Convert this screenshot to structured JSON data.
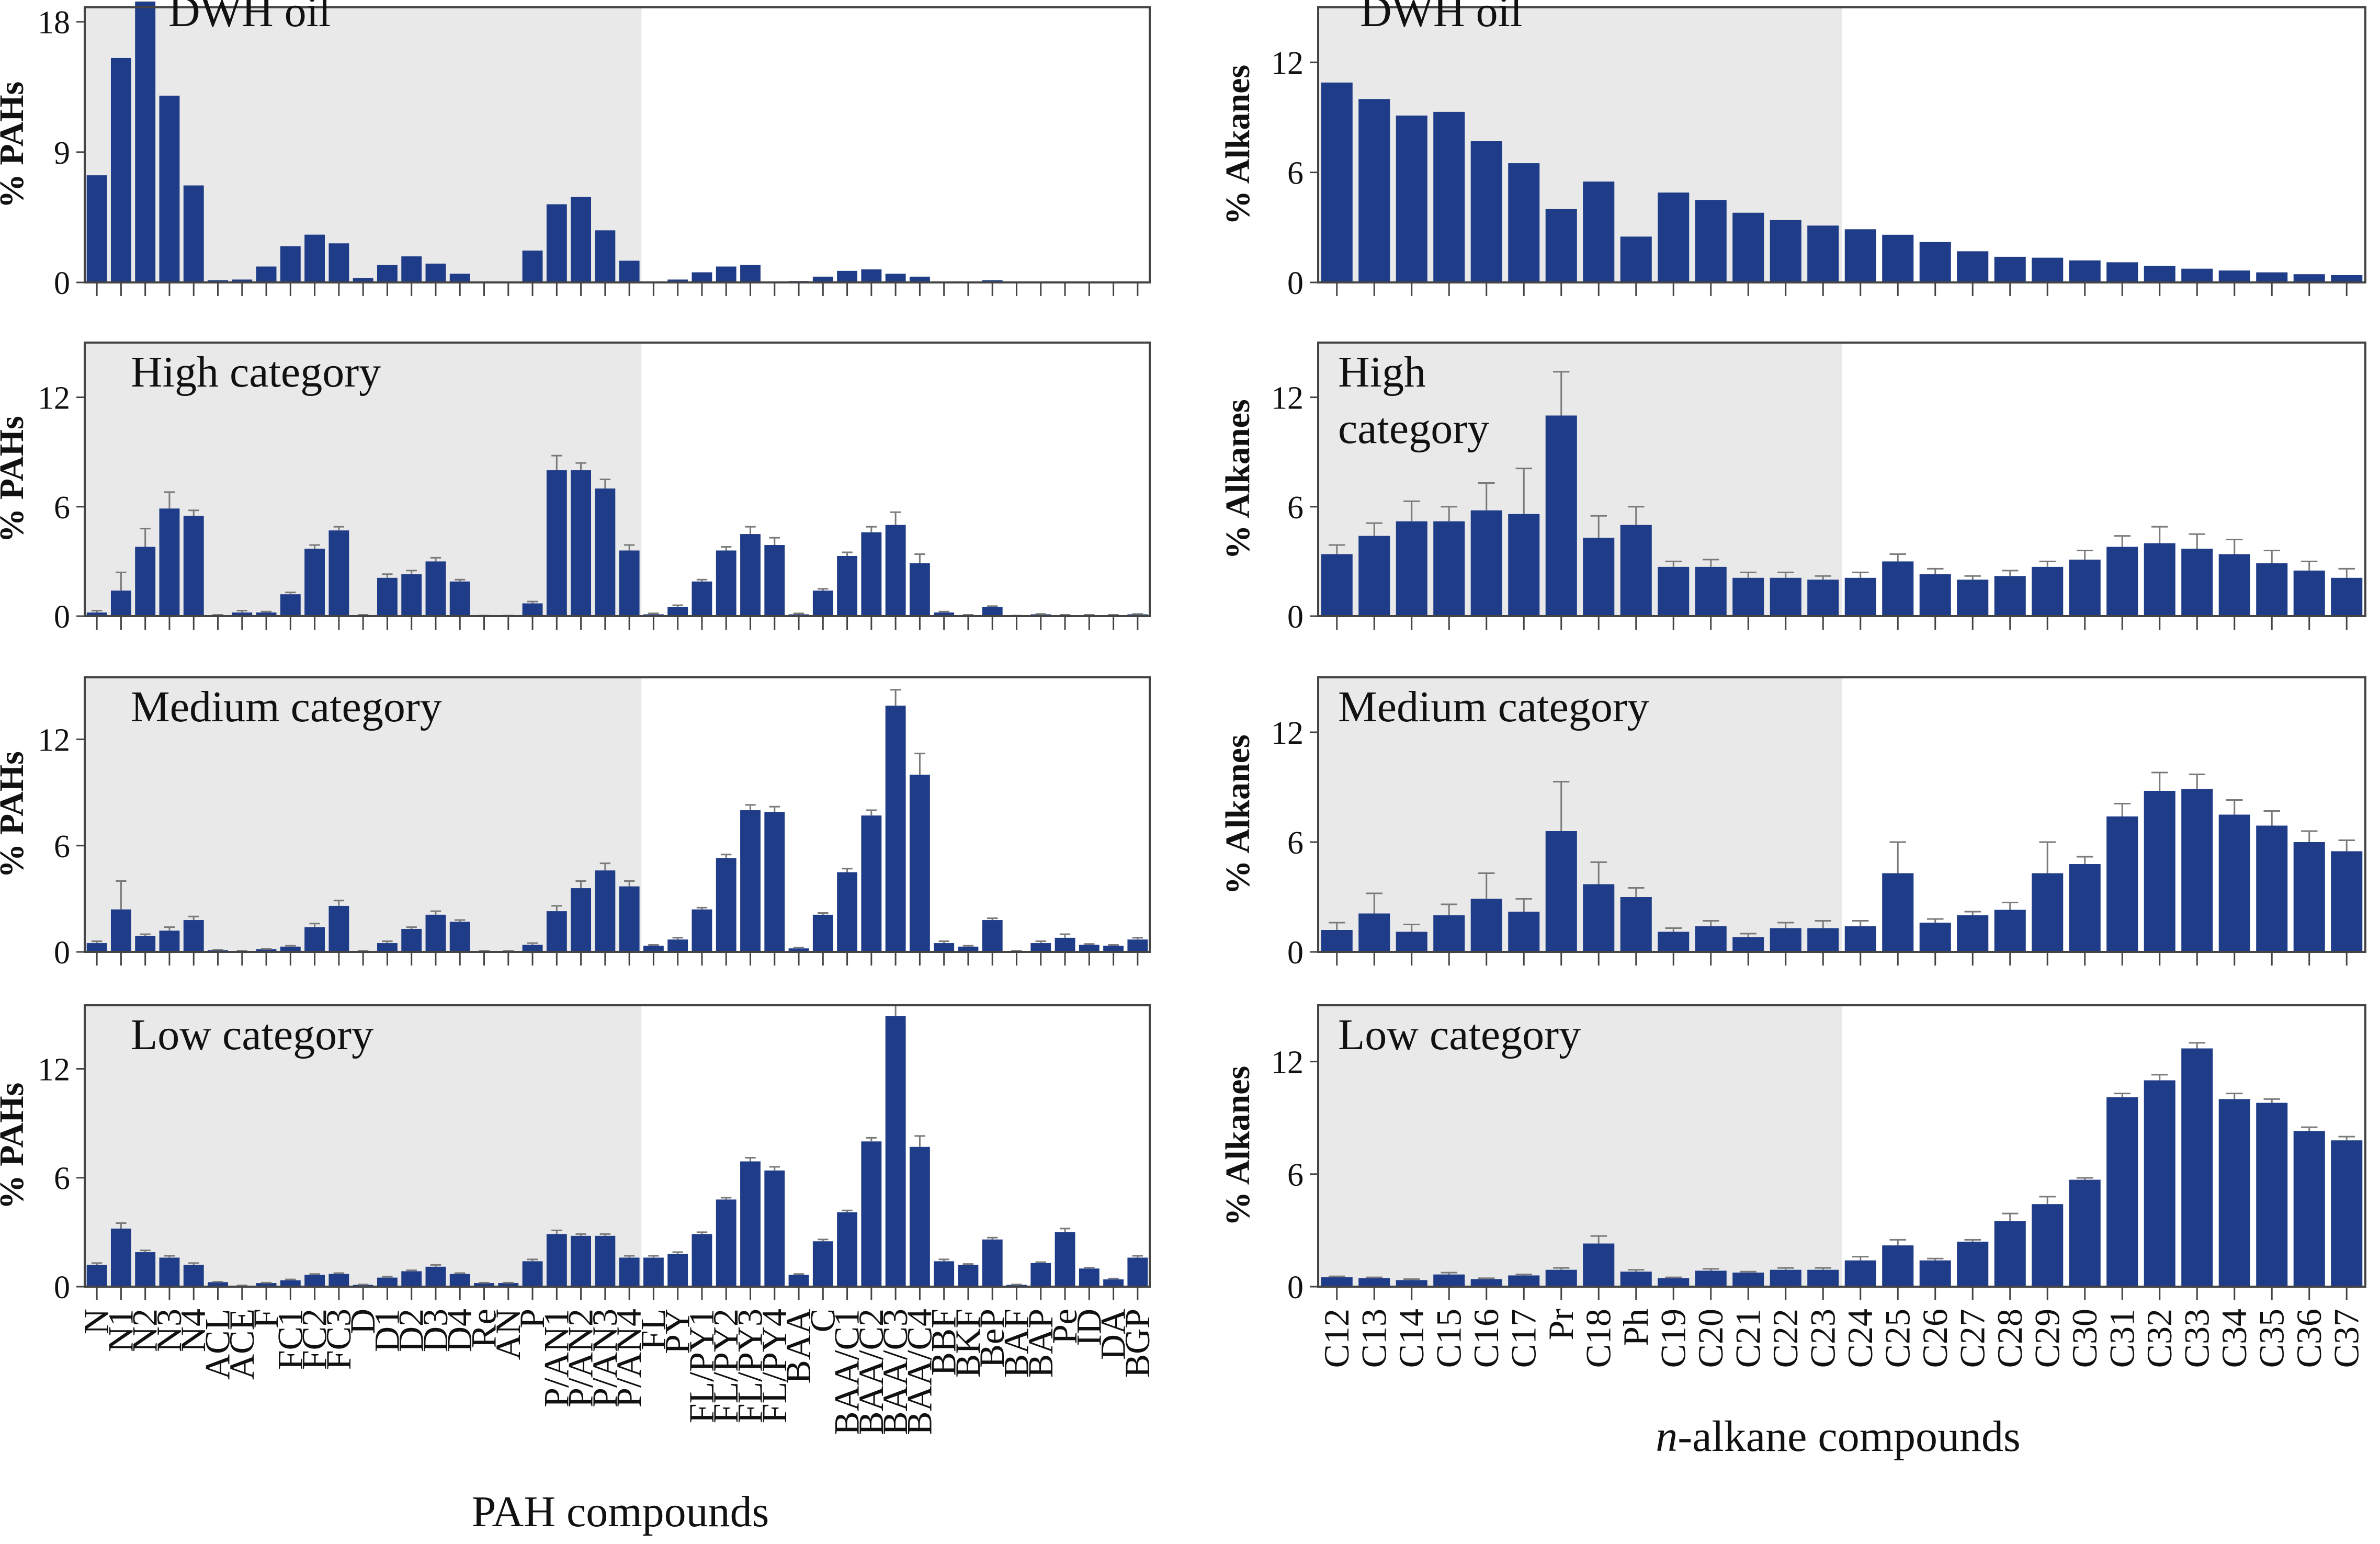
{
  "figure": {
    "pah_xlabel": "PAH compounds",
    "alkane_xlabel_italic": "n",
    "alkane_xlabel_rest": "-alkane compounds"
  },
  "colors": {
    "bar": "#1f3c88",
    "shade": "#e9e9e9",
    "axis": "#444444",
    "error": "#7a7a7a"
  },
  "chart_data": [
    {
      "type": "bar",
      "panel": "pah",
      "title": "DWH oil",
      "ylabel": "% PAHs",
      "ylim": [
        0,
        19
      ],
      "yticks": [
        0,
        9,
        18
      ],
      "shade_through": "P/AN4",
      "categories": [
        "N",
        "N1",
        "N2",
        "N3",
        "N4",
        "ACL",
        "ACE",
        "F",
        "FC1",
        "FC2",
        "FC3",
        "D",
        "D1",
        "D2",
        "D3",
        "D4",
        "Re",
        "AN",
        "P",
        "P/AN1",
        "P/AN2",
        "P/AN3",
        "P/AN4",
        "FL",
        "PY",
        "FL/PY1",
        "FL/PY2",
        "FL/PY3",
        "FL/PY4",
        "BAA",
        "C",
        "BAA/C1",
        "BAA/C2",
        "BAA/C3",
        "BAA/C4",
        "BBF",
        "BKF",
        "BeP",
        "BAF",
        "BAP",
        "Pe",
        "ID",
        "DA",
        "BGP"
      ],
      "values": [
        7.4,
        15.5,
        19.4,
        12.9,
        6.7,
        0.15,
        0.2,
        1.1,
        2.5,
        3.3,
        2.7,
        0.3,
        1.2,
        1.8,
        1.3,
        0.6,
        0.05,
        0.05,
        2.2,
        5.4,
        5.9,
        3.6,
        1.5,
        0.05,
        0.2,
        0.7,
        1.1,
        1.2,
        0.05,
        0.1,
        0.4,
        0.8,
        0.9,
        0.6,
        0.4,
        0.02,
        0.05,
        0.15,
        0.02,
        0.02,
        0.02,
        0.02,
        0.02,
        0.02
      ],
      "errors": []
    },
    {
      "type": "bar",
      "panel": "pah",
      "title": "High category",
      "ylabel": "% PAHs",
      "ylim": [
        0,
        15
      ],
      "yticks": [
        0,
        6,
        12
      ],
      "shade_through": "P/AN4",
      "categories": [
        "N",
        "N1",
        "N2",
        "N3",
        "N4",
        "ACL",
        "ACE",
        "F",
        "FC1",
        "FC2",
        "FC3",
        "D",
        "D1",
        "D2",
        "D3",
        "D4",
        "Re",
        "AN",
        "P",
        "P/AN1",
        "P/AN2",
        "P/AN3",
        "P/AN4",
        "FL",
        "PY",
        "FL/PY1",
        "FL/PY2",
        "FL/PY3",
        "FL/PY4",
        "BAA",
        "C",
        "BAA/C1",
        "BAA/C2",
        "BAA/C3",
        "BAA/C4",
        "BBF",
        "BKF",
        "BeP",
        "BAF",
        "BAP",
        "Pe",
        "ID",
        "DA",
        "BGP"
      ],
      "values": [
        0.2,
        1.4,
        3.8,
        5.9,
        5.5,
        0.05,
        0.2,
        0.2,
        1.2,
        3.7,
        4.7,
        0.05,
        2.1,
        2.3,
        3.0,
        1.9,
        0.02,
        0.02,
        0.7,
        8.0,
        8.0,
        7.0,
        3.6,
        0.1,
        0.5,
        1.9,
        3.6,
        4.5,
        3.9,
        0.1,
        1.4,
        3.3,
        4.6,
        5.0,
        2.9,
        0.2,
        0.05,
        0.5,
        0.02,
        0.1,
        0.05,
        0.05,
        0.05,
        0.1
      ],
      "errors": [
        0.1,
        1.0,
        1.0,
        0.9,
        0.3,
        0.02,
        0.1,
        0.05,
        0.1,
        0.2,
        0.2,
        0.02,
        0.2,
        0.2,
        0.2,
        0.1,
        0.01,
        0.01,
        0.1,
        0.8,
        0.4,
        0.5,
        0.3,
        0.05,
        0.1,
        0.1,
        0.2,
        0.4,
        0.4,
        0.05,
        0.1,
        0.2,
        0.3,
        0.7,
        0.5,
        0.05,
        0.02,
        0.05,
        0.01,
        0.02,
        0.02,
        0.02,
        0.02,
        0.02
      ]
    },
    {
      "type": "bar",
      "panel": "pah",
      "title": "Medium category",
      "ylabel": "% PAHs",
      "ylim": [
        0,
        15.5
      ],
      "yticks": [
        0,
        6,
        12
      ],
      "shade_through": "P/AN4",
      "categories": [
        "N",
        "N1",
        "N2",
        "N3",
        "N4",
        "ACL",
        "ACE",
        "F",
        "FC1",
        "FC2",
        "FC3",
        "D",
        "D1",
        "D2",
        "D3",
        "D4",
        "Re",
        "AN",
        "P",
        "P/AN1",
        "P/AN2",
        "P/AN3",
        "P/AN4",
        "FL",
        "PY",
        "FL/PY1",
        "FL/PY2",
        "FL/PY3",
        "FL/PY4",
        "BAA",
        "C",
        "BAA/C1",
        "BAA/C2",
        "BAA/C3",
        "BAA/C4",
        "BBF",
        "BKF",
        "BeP",
        "BAF",
        "BAP",
        "Pe",
        "ID",
        "DA",
        "BGP"
      ],
      "values": [
        0.5,
        2.4,
        0.9,
        1.2,
        1.8,
        0.1,
        0.05,
        0.15,
        0.3,
        1.4,
        2.6,
        0.05,
        0.5,
        1.3,
        2.1,
        1.7,
        0.05,
        0.05,
        0.4,
        2.3,
        3.6,
        4.6,
        3.7,
        0.35,
        0.7,
        2.4,
        5.3,
        8.0,
        7.9,
        0.2,
        2.1,
        4.5,
        7.7,
        13.9,
        10.0,
        0.5,
        0.3,
        1.8,
        0.05,
        0.5,
        0.8,
        0.4,
        0.35,
        0.7
      ],
      "errors": [
        0.1,
        1.6,
        0.1,
        0.2,
        0.2,
        0.02,
        0.02,
        0.02,
        0.05,
        0.2,
        0.3,
        0.02,
        0.1,
        0.1,
        0.2,
        0.1,
        0.02,
        0.02,
        0.1,
        0.3,
        0.4,
        0.4,
        0.3,
        0.05,
        0.1,
        0.1,
        0.2,
        0.3,
        0.3,
        0.05,
        0.1,
        0.2,
        0.3,
        0.9,
        1.2,
        0.1,
        0.05,
        0.1,
        0.02,
        0.1,
        0.2,
        0.05,
        0.05,
        0.1
      ]
    },
    {
      "type": "bar",
      "panel": "pah",
      "title": "Low category",
      "ylabel": "% PAHs",
      "ylim": [
        0,
        15.5
      ],
      "yticks": [
        0,
        6,
        12
      ],
      "shade_through": "P/AN4",
      "categories": [
        "N",
        "N1",
        "N2",
        "N3",
        "N4",
        "ACL",
        "ACE",
        "F",
        "FC1",
        "FC2",
        "FC3",
        "D",
        "D1",
        "D2",
        "D3",
        "D4",
        "Re",
        "AN",
        "P",
        "P/AN1",
        "P/AN2",
        "P/AN3",
        "P/AN4",
        "FL",
        "PY",
        "FL/PY1",
        "FL/PY2",
        "FL/PY3",
        "FL/PY4",
        "BAA",
        "C",
        "BAA/C1",
        "BAA/C2",
        "BAA/C3",
        "BAA/C4",
        "BBF",
        "BKF",
        "BeP",
        "BAF",
        "BAP",
        "Pe",
        "ID",
        "DA",
        "BGP"
      ],
      "values": [
        1.2,
        3.2,
        1.9,
        1.6,
        1.2,
        0.25,
        0.05,
        0.2,
        0.35,
        0.65,
        0.7,
        0.1,
        0.5,
        0.85,
        1.1,
        0.7,
        0.2,
        0.2,
        1.4,
        2.9,
        2.8,
        2.8,
        1.6,
        1.6,
        1.8,
        2.9,
        4.8,
        6.9,
        6.4,
        0.65,
        2.5,
        4.1,
        8.0,
        14.9,
        7.7,
        1.4,
        1.2,
        2.6,
        0.1,
        1.3,
        3.0,
        1.0,
        0.4,
        1.6
      ],
      "errors": [
        0.1,
        0.3,
        0.1,
        0.1,
        0.1,
        0.02,
        0.02,
        0.02,
        0.05,
        0.05,
        0.05,
        0.02,
        0.05,
        0.05,
        0.1,
        0.05,
        0.02,
        0.02,
        0.1,
        0.2,
        0.1,
        0.1,
        0.1,
        0.1,
        0.1,
        0.1,
        0.1,
        0.2,
        0.2,
        0.05,
        0.1,
        0.1,
        0.2,
        0.6,
        0.6,
        0.1,
        0.05,
        0.1,
        0.02,
        0.05,
        0.2,
        0.05,
        0.05,
        0.1
      ]
    },
    {
      "type": "bar",
      "panel": "alkane",
      "title": "DWH oil",
      "title_lines": [
        "DWH oil"
      ],
      "ylabel": "% Alkanes",
      "ylim": [
        0,
        15
      ],
      "yticks": [
        0,
        6,
        12
      ],
      "shade_through": "C23",
      "categories": [
        "C12",
        "C13",
        "C14",
        "C15",
        "C16",
        "C17",
        "Pr",
        "C18",
        "Ph",
        "C19",
        "C20",
        "C21",
        "C22",
        "C23",
        "C24",
        "C25",
        "C26",
        "C27",
        "C28",
        "C29",
        "C30",
        "C31",
        "C32",
        "C33",
        "C34",
        "C35",
        "C36",
        "C37"
      ],
      "values": [
        10.9,
        10.0,
        9.1,
        9.3,
        7.7,
        6.5,
        4.0,
        5.5,
        2.5,
        4.9,
        4.5,
        3.8,
        3.4,
        3.1,
        2.9,
        2.6,
        2.2,
        1.7,
        1.4,
        1.35,
        1.2,
        1.1,
        0.9,
        0.75,
        0.65,
        0.55,
        0.45,
        0.4
      ],
      "errors": []
    },
    {
      "type": "bar",
      "panel": "alkane",
      "title": "High category",
      "title_lines": [
        "High",
        "category"
      ],
      "ylabel": "% Alkanes",
      "ylim": [
        0,
        15
      ],
      "yticks": [
        0,
        6,
        12
      ],
      "shade_through": "C23",
      "categories": [
        "C12",
        "C13",
        "C14",
        "C15",
        "C16",
        "C17",
        "Pr",
        "C18",
        "Ph",
        "C19",
        "C20",
        "C21",
        "C22",
        "C23",
        "C24",
        "C25",
        "C26",
        "C27",
        "C28",
        "C29",
        "C30",
        "C31",
        "C32",
        "C33",
        "C34",
        "C35",
        "C36",
        "C37"
      ],
      "values": [
        3.4,
        4.4,
        5.2,
        5.2,
        5.8,
        5.6,
        11.0,
        4.3,
        5.0,
        2.7,
        2.7,
        2.1,
        2.1,
        2.0,
        2.1,
        3.0,
        2.3,
        2.0,
        2.2,
        2.7,
        3.1,
        3.8,
        4.0,
        3.7,
        3.4,
        2.9,
        2.5,
        2.1
      ],
      "errors": [
        0.5,
        0.7,
        1.1,
        0.8,
        1.5,
        2.5,
        2.4,
        1.2,
        1.0,
        0.3,
        0.4,
        0.3,
        0.3,
        0.2,
        0.3,
        0.4,
        0.3,
        0.2,
        0.3,
        0.3,
        0.5,
        0.6,
        0.9,
        0.8,
        0.8,
        0.7,
        0.5,
        0.5
      ]
    },
    {
      "type": "bar",
      "panel": "alkane",
      "title": "Medium category",
      "title_lines": [
        "Medium category"
      ],
      "ylabel": "% Alkanes",
      "ylim": [
        0,
        15
      ],
      "yticks": [
        0,
        6,
        12
      ],
      "shade_through": "C23",
      "categories": [
        "C12",
        "C13",
        "C14",
        "C15",
        "C16",
        "C17",
        "Pr",
        "C18",
        "Ph",
        "C19",
        "C20",
        "C21",
        "C22",
        "C23",
        "C24",
        "C25",
        "C26",
        "C27",
        "C28",
        "C29",
        "C30",
        "C31",
        "C32",
        "C33",
        "C34",
        "C35",
        "C36",
        "C37"
      ],
      "values": [
        1.2,
        2.1,
        1.1,
        2.0,
        2.9,
        2.2,
        6.6,
        3.7,
        3.0,
        1.1,
        1.4,
        0.8,
        1.3,
        1.3,
        1.4,
        4.3,
        1.6,
        2.0,
        2.3,
        4.3,
        4.8,
        7.4,
        8.8,
        8.9,
        7.5,
        6.9,
        6.0,
        5.5
      ],
      "errors": [
        0.4,
        1.1,
        0.4,
        0.6,
        1.4,
        0.7,
        2.7,
        1.2,
        0.5,
        0.2,
        0.3,
        0.2,
        0.3,
        0.4,
        0.3,
        1.7,
        0.2,
        0.2,
        0.4,
        1.7,
        0.4,
        0.7,
        1.0,
        0.8,
        0.8,
        0.8,
        0.6,
        0.6
      ]
    },
    {
      "type": "bar",
      "panel": "alkane",
      "title": "Low category",
      "title_lines": [
        "Low category"
      ],
      "ylabel": "% Alkanes",
      "ylim": [
        0,
        15
      ],
      "yticks": [
        0,
        6,
        12
      ],
      "shade_through": "C23",
      "categories": [
        "C12",
        "C13",
        "C14",
        "C15",
        "C16",
        "C17",
        "Pr",
        "C18",
        "Ph",
        "C19",
        "C20",
        "C21",
        "C22",
        "C23",
        "C24",
        "C25",
        "C26",
        "C27",
        "C28",
        "C29",
        "C30",
        "C31",
        "C32",
        "C33",
        "C34",
        "C35",
        "C36",
        "C37"
      ],
      "values": [
        0.5,
        0.45,
        0.35,
        0.65,
        0.4,
        0.6,
        0.9,
        2.3,
        0.8,
        0.45,
        0.85,
        0.75,
        0.9,
        0.9,
        1.4,
        2.2,
        1.4,
        2.4,
        3.5,
        4.4,
        5.7,
        10.1,
        11.0,
        12.7,
        10.0,
        9.8,
        8.3,
        7.8
      ],
      "errors": [
        0.05,
        0.05,
        0.05,
        0.1,
        0.05,
        0.05,
        0.1,
        0.4,
        0.1,
        0.05,
        0.1,
        0.05,
        0.1,
        0.1,
        0.2,
        0.3,
        0.1,
        0.1,
        0.4,
        0.4,
        0.1,
        0.2,
        0.3,
        0.3,
        0.3,
        0.2,
        0.2,
        0.2
      ]
    }
  ]
}
